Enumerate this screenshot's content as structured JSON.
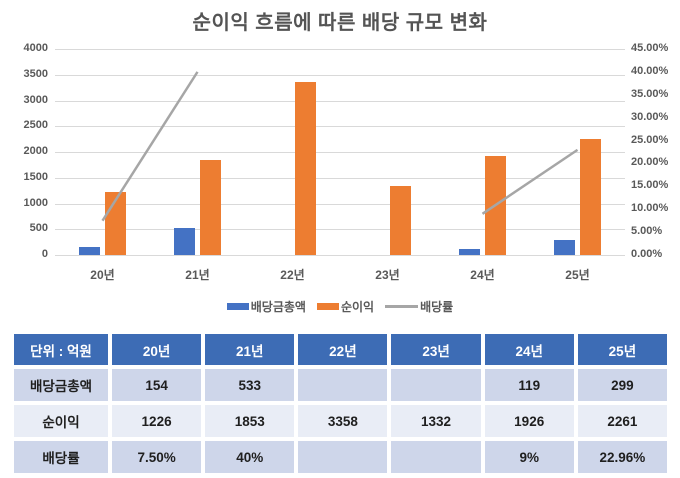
{
  "title": "순이익 흐름에 따른 배당 규모 변화",
  "chart_data": {
    "type": "combo-bar-line",
    "categories": [
      "20년",
      "21년",
      "22년",
      "23년",
      "24년",
      "25년"
    ],
    "series": [
      {
        "name": "배당금총액",
        "type": "bar",
        "axis": "left",
        "color": "#4472C4",
        "values": [
          154,
          533,
          null,
          null,
          119,
          299
        ]
      },
      {
        "name": "순이익",
        "type": "bar",
        "axis": "left",
        "color": "#ED7D31",
        "values": [
          1226,
          1853,
          3358,
          1332,
          1926,
          2261
        ]
      },
      {
        "name": "배당률",
        "type": "line",
        "axis": "right",
        "color": "#A6A6A6",
        "values": [
          7.5,
          40,
          null,
          null,
          9,
          22.96
        ]
      }
    ],
    "left_axis": {
      "min": 0,
      "max": 4000,
      "step": 500
    },
    "right_axis": {
      "min": 0,
      "max": 45,
      "step": 5,
      "format": "percent-2-decimals"
    },
    "grid": "horizontal",
    "legend_position": "bottom"
  },
  "legend": {
    "items": [
      {
        "label": "배당금총액",
        "color": "#4472C4",
        "marker": "rect"
      },
      {
        "label": "순이익",
        "color": "#ED7D31",
        "marker": "rect"
      },
      {
        "label": "배당률",
        "color": "#A6A6A6",
        "marker": "line"
      }
    ]
  },
  "table": {
    "header": [
      "단위 : 억원",
      "20년",
      "21년",
      "22년",
      "23년",
      "24년",
      "25년"
    ],
    "rows": [
      {
        "label": "배당금총액",
        "values": [
          "154",
          "533",
          "",
          "",
          "119",
          "299"
        ]
      },
      {
        "label": "순이익",
        "values": [
          "1226",
          "1853",
          "3358",
          "1332",
          "1926",
          "2261"
        ]
      },
      {
        "label": "배당률",
        "values": [
          "7.50%",
          "40%",
          "",
          "",
          "9%",
          "22.96%"
        ]
      }
    ]
  },
  "colors": {
    "header_blue": "#3D6CB5",
    "row_light": "#CED6EA",
    "row_lighter": "#E9EDF6",
    "grid_gray": "#D9D9D9",
    "text_gray": "#595959"
  }
}
